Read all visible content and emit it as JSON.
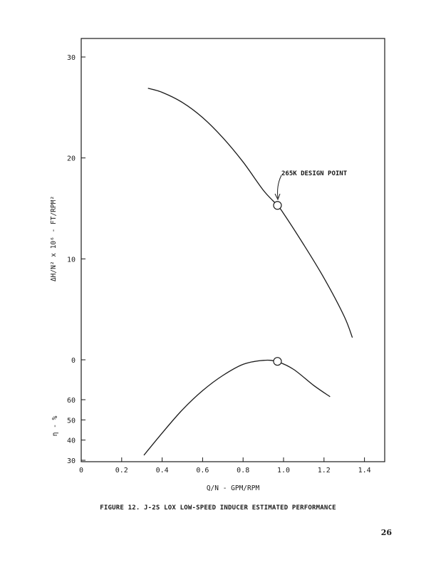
{
  "figure": {
    "caption": "FIGURE 12.  J-2S LOX LOW-SPEED INDUCER ESTIMATED PERFORMANCE",
    "page_number": "26"
  },
  "chart_data": [
    {
      "type": "line",
      "title": "",
      "xlabel": "Q/N  -  GPM/RPM",
      "ylabel": "ΔH/N² x 10⁶  -  FT/RPM²",
      "xlim": [
        0,
        1.5
      ],
      "ylim": [
        0,
        32
      ],
      "x_ticks": [
        "0",
        "0.2",
        "0.4",
        "0.6",
        "0.8",
        "1.0",
        "1.2",
        "1.4"
      ],
      "y_ticks": [
        "0",
        "10",
        "20",
        "30"
      ],
      "y_tick_values": [
        0,
        10,
        20,
        30
      ],
      "grid": false,
      "series": [
        {
          "x": [
            0.33,
            0.4,
            0.5,
            0.6,
            0.7,
            0.8,
            0.9,
            0.97,
            1.0,
            1.1,
            1.2,
            1.3,
            1.34
          ],
          "values": [
            26.9,
            26.5,
            25.5,
            24.0,
            22.0,
            19.6,
            16.8,
            15.3,
            14.5,
            11.4,
            8.1,
            4.3,
            2.2
          ]
        }
      ],
      "markers": [
        {
          "x": 0.97,
          "y": 15.3,
          "symbol": "open-circle"
        }
      ],
      "annotations": [
        {
          "text": "265K DESIGN POINT",
          "x": 0.97,
          "y": 15.3
        }
      ]
    },
    {
      "type": "line",
      "title": "",
      "xlabel": "Q/N  -  GPM/RPM",
      "ylabel": "η - %",
      "xlim": [
        0,
        1.5
      ],
      "ylim": [
        30,
        80
      ],
      "y_ticks": [
        "30",
        "40",
        "50",
        "60"
      ],
      "y_tick_values": [
        30,
        40,
        50,
        60
      ],
      "grid": false,
      "series": [
        {
          "x": [
            0.31,
            0.4,
            0.5,
            0.6,
            0.7,
            0.8,
            0.9,
            0.97,
            1.05,
            1.15,
            1.23
          ],
          "values": [
            32.5,
            43.5,
            55.0,
            64.5,
            72.0,
            77.5,
            79.5,
            78.8,
            75.0,
            67.0,
            61.5
          ]
        }
      ],
      "markers": [
        {
          "x": 0.97,
          "y": 79.0,
          "symbol": "open-circle"
        }
      ]
    }
  ]
}
